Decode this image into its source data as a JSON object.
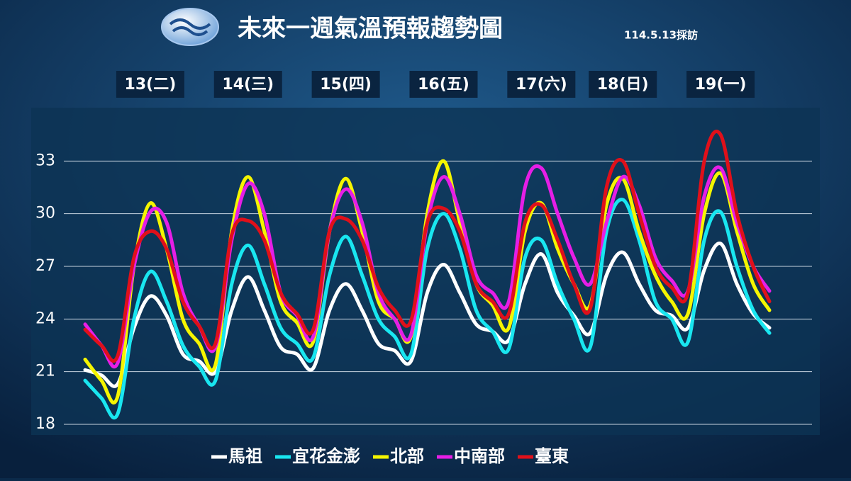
{
  "chart_data": {
    "type": "line",
    "title": "未來一週氣溫預報趨勢圖",
    "subtitle": "114.5.13採訪",
    "categories": [
      null,
      null,
      null,
      null,
      "13(二)",
      null,
      null,
      null,
      null,
      null,
      "14(三)",
      null,
      null,
      null,
      null,
      null,
      "15(四)",
      null,
      null,
      null,
      null,
      null,
      "16(五)",
      null,
      null,
      null,
      null,
      null,
      "17(六)",
      null,
      null,
      null,
      null,
      "18(日)",
      null,
      null,
      null,
      null,
      null,
      "19(一)",
      null,
      null,
      null
    ],
    "series": [
      {
        "name": "馬祖",
        "color": "#ffffff",
        "values": [
          21.1,
          20.8,
          20.3,
          23.5,
          25.3,
          24.2,
          22.0,
          21.6,
          21.0,
          24.5,
          26.4,
          24.5,
          22.4,
          22.0,
          21.2,
          24.5,
          26.0,
          24.5,
          22.6,
          22.2,
          21.6,
          25.5,
          27.1,
          25.5,
          23.7,
          23.3,
          22.8,
          26.0,
          27.7,
          25.5,
          24.2,
          23.2,
          26.5,
          27.8,
          26.0,
          24.5,
          24.2,
          23.5,
          26.8,
          28.3,
          26.0,
          24.3,
          23.5
        ]
      },
      {
        "name": "宜花金澎",
        "color": "#19e6f0",
        "values": [
          20.5,
          19.5,
          18.6,
          24.0,
          26.7,
          25.0,
          22.5,
          21.3,
          20.5,
          26.0,
          28.2,
          26.0,
          23.5,
          22.6,
          21.8,
          26.5,
          28.7,
          26.5,
          24.0,
          23.0,
          22.0,
          28.0,
          30.0,
          28.0,
          24.5,
          23.3,
          22.3,
          27.5,
          28.5,
          26.0,
          24.0,
          22.4,
          29.0,
          30.8,
          28.5,
          25.0,
          24.0,
          22.7,
          28.5,
          30.1,
          27.0,
          24.5,
          23.2
        ]
      },
      {
        "name": "北部",
        "color": "#f5f500",
        "values": [
          21.7,
          20.5,
          19.6,
          27.0,
          30.6,
          28.0,
          24.0,
          22.6,
          21.4,
          29.0,
          32.1,
          29.0,
          25.0,
          23.8,
          22.7,
          29.0,
          32.0,
          29.0,
          25.0,
          24.0,
          23.0,
          30.0,
          33.0,
          29.5,
          26.0,
          24.8,
          23.5,
          29.0,
          30.6,
          28.0,
          26.0,
          24.8,
          30.5,
          32.0,
          29.0,
          26.5,
          25.0,
          24.3,
          30.0,
          32.3,
          29.0,
          26.0,
          24.5
        ]
      },
      {
        "name": "中南部",
        "color": "#e61ee6",
        "values": [
          23.7,
          22.5,
          21.5,
          27.0,
          30.1,
          29.5,
          25.5,
          23.6,
          22.4,
          28.5,
          31.7,
          30.0,
          25.5,
          24.2,
          23.0,
          29.0,
          31.4,
          29.5,
          25.5,
          24.0,
          23.1,
          29.5,
          32.1,
          30.0,
          26.5,
          25.5,
          25.0,
          31.5,
          32.6,
          30.0,
          27.5,
          26.0,
          29.5,
          32.1,
          30.5,
          27.5,
          26.2,
          25.6,
          31.0,
          32.6,
          29.5,
          27.0,
          25.6
        ]
      },
      {
        "name": "臺東",
        "color": "#e0101a",
        "values": [
          23.4,
          22.5,
          21.9,
          27.5,
          29.0,
          28.0,
          25.0,
          23.6,
          22.6,
          28.8,
          29.6,
          28.5,
          25.5,
          24.3,
          23.4,
          29.0,
          29.7,
          28.5,
          25.8,
          24.5,
          23.9,
          29.5,
          30.3,
          29.0,
          26.0,
          25.0,
          24.3,
          29.5,
          30.5,
          28.5,
          26.0,
          24.6,
          31.5,
          33.0,
          30.0,
          27.0,
          25.8,
          25.5,
          33.0,
          34.5,
          30.0,
          27.0,
          25.0
        ]
      }
    ],
    "ylim": [
      17.5,
      35.5
    ],
    "yticks": [
      18,
      21,
      24,
      27,
      30,
      33
    ],
    "grid": true
  }
}
